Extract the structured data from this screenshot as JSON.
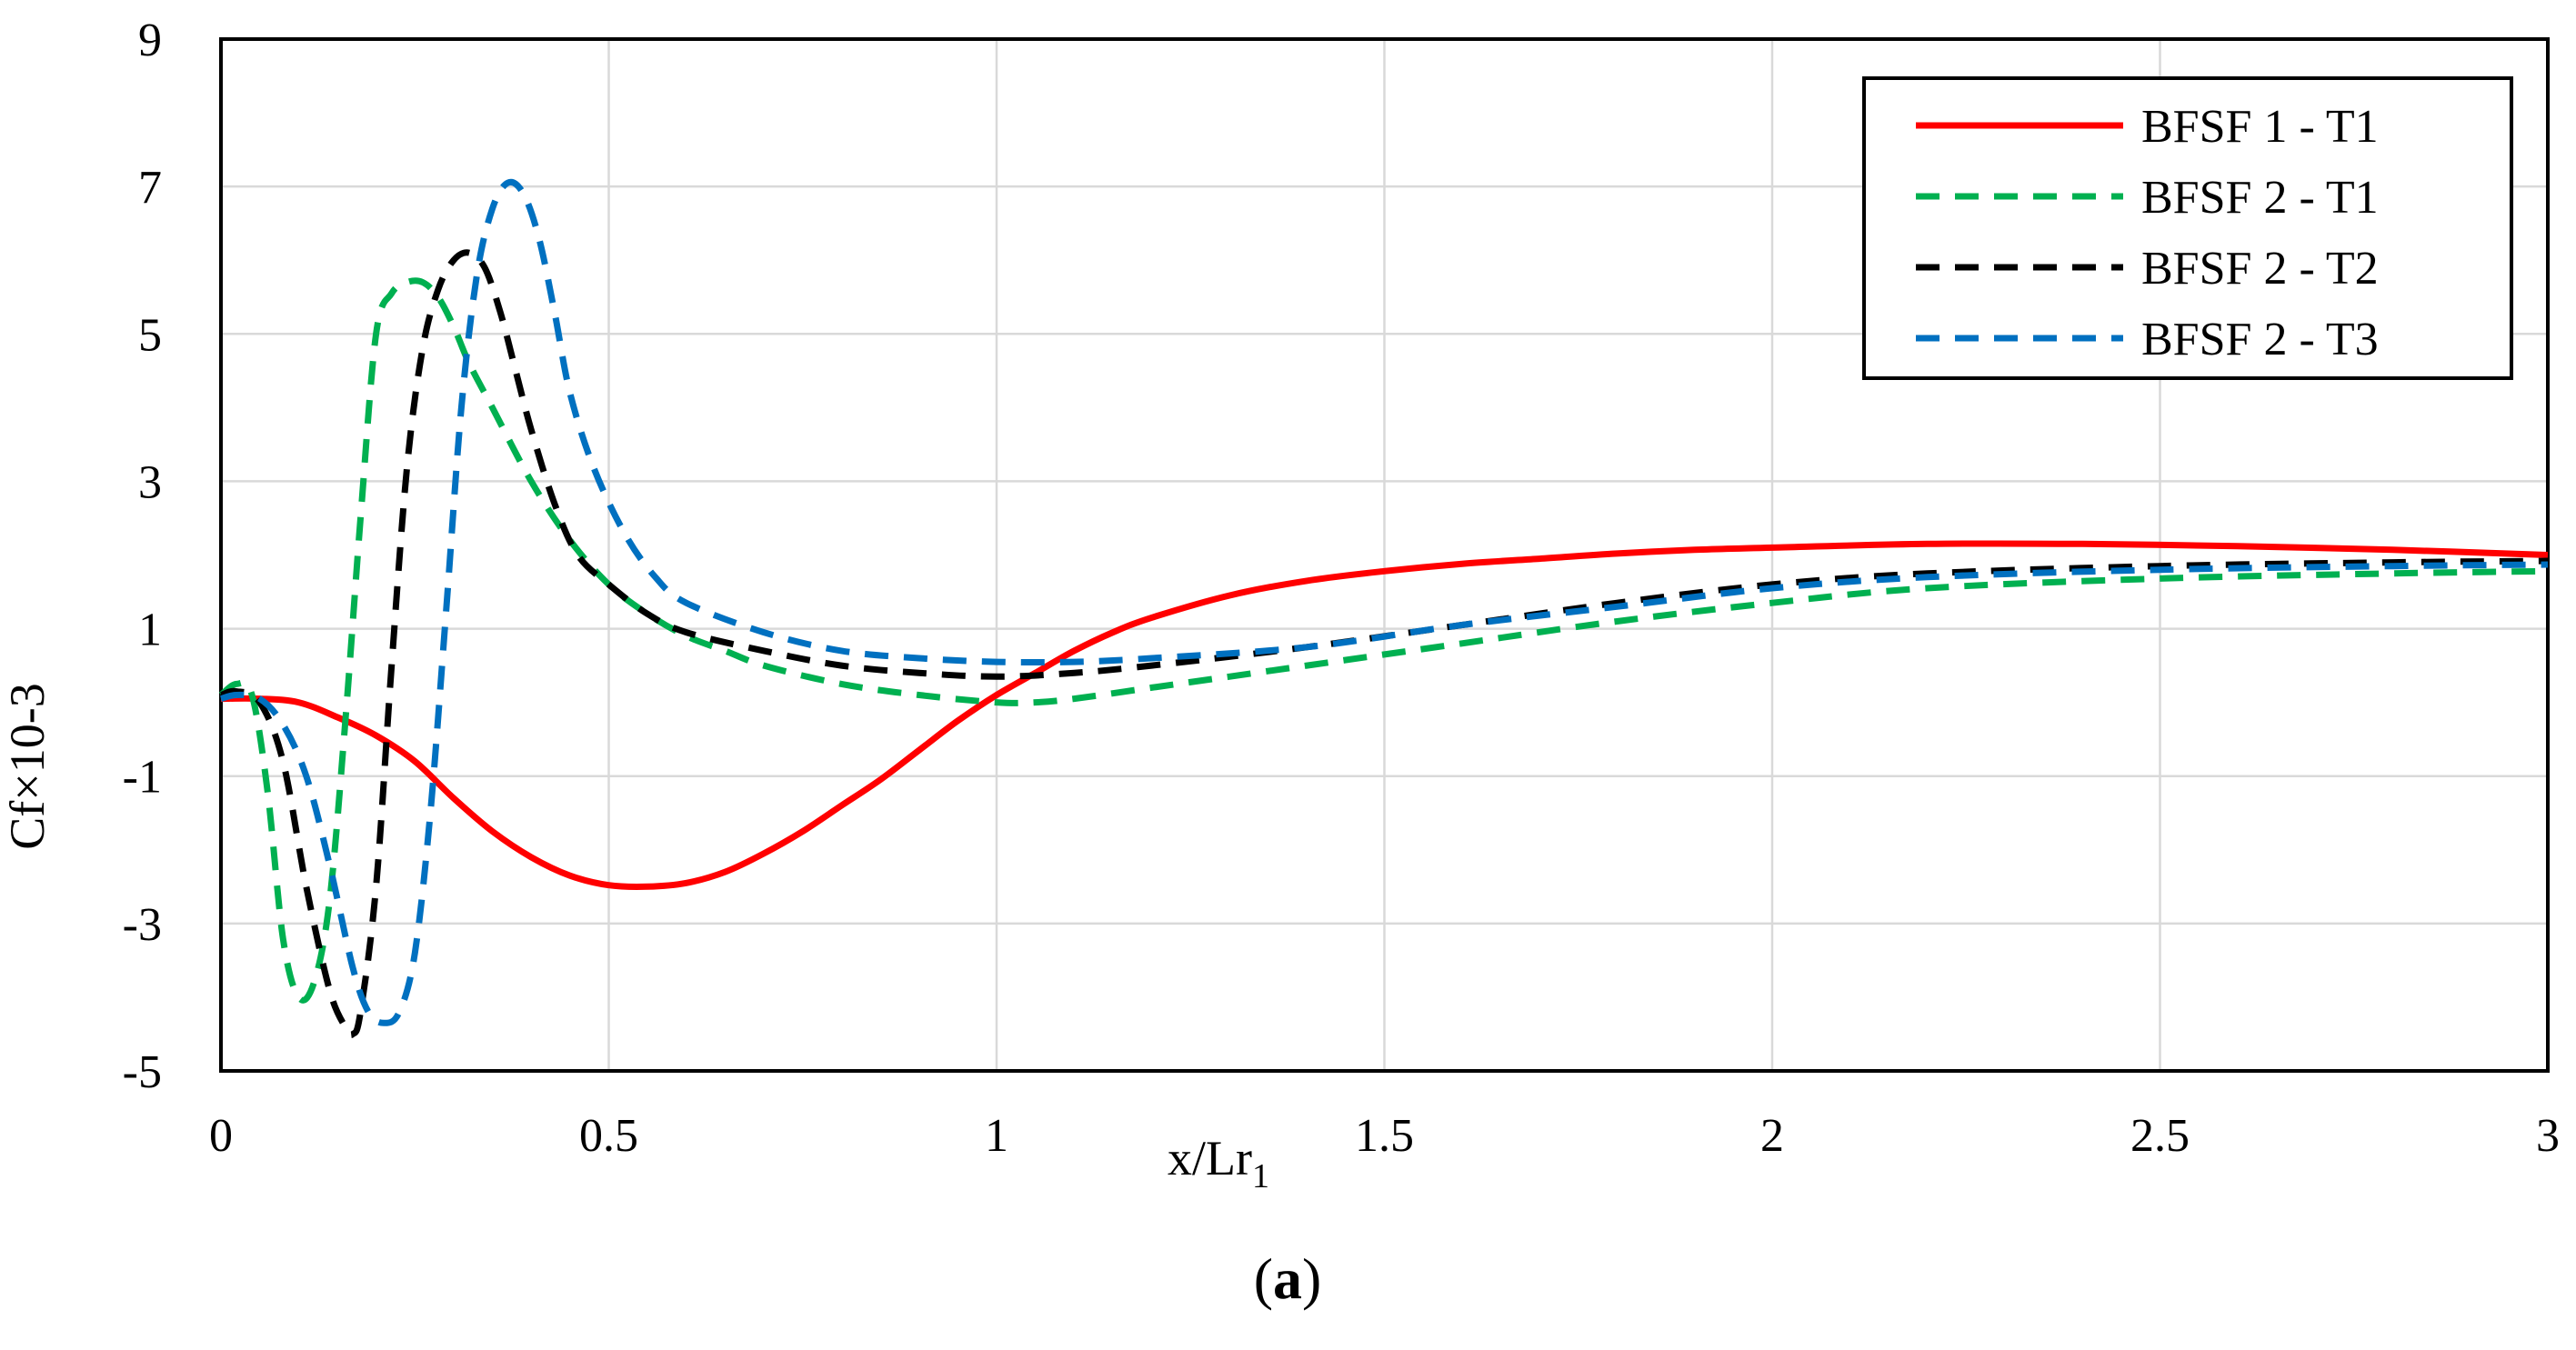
{
  "chart_data": {
    "type": "line",
    "title": "",
    "xlabel": "x/Lr",
    "xlabel_sub": "1",
    "ylabel": "Cf×10-3",
    "caption_letter": "a",
    "caption_open": "(",
    "caption_close": ")",
    "xlim": [
      0,
      3
    ],
    "ylim": [
      -5,
      9
    ],
    "xticks": [
      0,
      0.5,
      1,
      1.5,
      2,
      2.5,
      3
    ],
    "xtick_labels": [
      "0",
      "0.5",
      "1",
      "1.5",
      "2",
      "2.5",
      "3"
    ],
    "yticks": [
      -5,
      -3,
      -1,
      1,
      3,
      5,
      7,
      9
    ],
    "ytick_labels": [
      "-5",
      "-3",
      "-1",
      "1",
      "3",
      "5",
      "7",
      "9"
    ],
    "grid": true,
    "legend_position": "top-right",
    "series": [
      {
        "name": "BFSF 1 - T1",
        "color": "#ff0000",
        "dash": "solid",
        "x": [
          0,
          0.05,
          0.1,
          0.15,
          0.2,
          0.25,
          0.3,
          0.35,
          0.4,
          0.45,
          0.5,
          0.55,
          0.6,
          0.65,
          0.7,
          0.75,
          0.8,
          0.85,
          0.9,
          0.95,
          1.0,
          1.05,
          1.1,
          1.15,
          1.2,
          1.3,
          1.4,
          1.5,
          1.6,
          1.7,
          1.8,
          1.9,
          2.0,
          2.2,
          2.4,
          2.6,
          2.8,
          3.0
        ],
        "y": [
          0.05,
          0.05,
          0.0,
          -0.2,
          -0.45,
          -0.8,
          -1.3,
          -1.75,
          -2.1,
          -2.35,
          -2.48,
          -2.5,
          -2.45,
          -2.3,
          -2.05,
          -1.75,
          -1.4,
          -1.05,
          -0.65,
          -0.25,
          0.1,
          0.4,
          0.7,
          0.95,
          1.15,
          1.45,
          1.65,
          1.78,
          1.88,
          1.95,
          2.02,
          2.07,
          2.1,
          2.15,
          2.15,
          2.12,
          2.07,
          2.0
        ]
      },
      {
        "name": "BFSF 2 - T1",
        "color": "#00b050",
        "dash": "dashed",
        "x": [
          0,
          0.02,
          0.04,
          0.06,
          0.08,
          0.1,
          0.12,
          0.14,
          0.16,
          0.18,
          0.2,
          0.22,
          0.24,
          0.26,
          0.28,
          0.3,
          0.32,
          0.35,
          0.4,
          0.45,
          0.5,
          0.55,
          0.6,
          0.65,
          0.7,
          0.8,
          0.9,
          1.0,
          1.05,
          1.1,
          1.2,
          1.3,
          1.4,
          1.5,
          1.6,
          1.8,
          2.0,
          2.2,
          2.5,
          2.8,
          3.0
        ],
        "y": [
          0.1,
          0.25,
          0.1,
          -1.2,
          -3.2,
          -4.0,
          -3.8,
          -2.7,
          -0.3,
          2.5,
          5.0,
          5.55,
          5.7,
          5.7,
          5.5,
          5.1,
          4.6,
          4.0,
          3.0,
          2.2,
          1.6,
          1.2,
          0.9,
          0.7,
          0.5,
          0.25,
          0.1,
          0.0,
          0.0,
          0.05,
          0.2,
          0.35,
          0.5,
          0.65,
          0.8,
          1.1,
          1.35,
          1.55,
          1.68,
          1.75,
          1.78
        ]
      },
      {
        "name": "BFSF 2 - T2",
        "color": "#000000",
        "dash": "dashed",
        "x": [
          0,
          0.02,
          0.05,
          0.08,
          0.11,
          0.14,
          0.16,
          0.17,
          0.18,
          0.2,
          0.22,
          0.24,
          0.26,
          0.28,
          0.3,
          0.32,
          0.34,
          0.36,
          0.38,
          0.4,
          0.43,
          0.46,
          0.5,
          0.55,
          0.6,
          0.7,
          0.8,
          0.9,
          1.0,
          1.1,
          1.2,
          1.4,
          1.6,
          1.8,
          2.0,
          2.2,
          2.5,
          2.8,
          3.0
        ],
        "y": [
          0.1,
          0.15,
          0.0,
          -0.8,
          -2.5,
          -3.9,
          -4.4,
          -4.5,
          -4.2,
          -2.5,
          0.5,
          3.2,
          4.8,
          5.6,
          6.0,
          6.1,
          5.9,
          5.3,
          4.5,
          3.7,
          2.7,
          2.0,
          1.6,
          1.2,
          0.95,
          0.7,
          0.5,
          0.4,
          0.35,
          0.4,
          0.5,
          0.75,
          1.05,
          1.35,
          1.6,
          1.75,
          1.85,
          1.9,
          1.92
        ]
      },
      {
        "name": "BFSF 2 - T3",
        "color": "#0070c0",
        "dash": "dashed",
        "x": [
          0,
          0.02,
          0.05,
          0.08,
          0.11,
          0.14,
          0.17,
          0.19,
          0.21,
          0.23,
          0.25,
          0.27,
          0.29,
          0.31,
          0.33,
          0.35,
          0.37,
          0.39,
          0.41,
          0.43,
          0.45,
          0.48,
          0.52,
          0.56,
          0.6,
          0.7,
          0.8,
          0.9,
          1.0,
          1.1,
          1.2,
          1.4,
          1.6,
          1.8,
          2.0,
          2.2,
          2.5,
          2.8,
          3.0
        ],
        "y": [
          0.05,
          0.1,
          0.05,
          -0.3,
          -1.0,
          -2.2,
          -3.6,
          -4.2,
          -4.35,
          -4.2,
          -3.4,
          -1.5,
          1.2,
          4.0,
          5.8,
          6.7,
          7.05,
          6.9,
          6.3,
          5.3,
          4.2,
          3.2,
          2.3,
          1.7,
          1.35,
          0.95,
          0.7,
          0.6,
          0.55,
          0.55,
          0.6,
          0.75,
          1.05,
          1.3,
          1.55,
          1.7,
          1.8,
          1.85,
          1.87
        ]
      }
    ]
  }
}
